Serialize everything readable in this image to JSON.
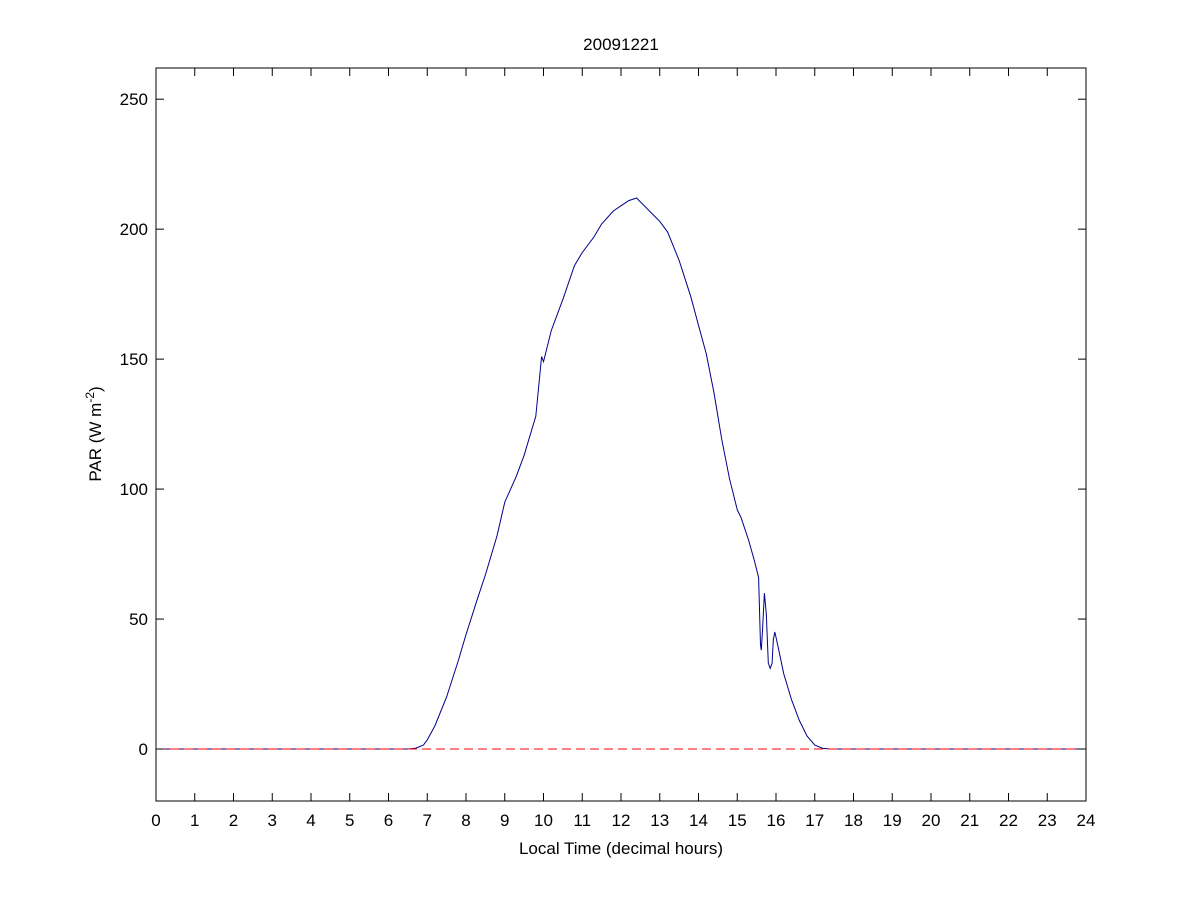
{
  "chart_data": {
    "type": "line",
    "title": "20091221",
    "xlabel": "Local Time (decimal hours)",
    "ylabel": "PAR (W m",
    "ylabel_superscript": "-2",
    "ylabel_suffix": ")",
    "xlim": [
      0,
      24
    ],
    "ylim": [
      -20,
      262
    ],
    "xticks": [
      0,
      1,
      2,
      3,
      4,
      5,
      6,
      7,
      8,
      9,
      10,
      11,
      12,
      13,
      14,
      15,
      16,
      17,
      18,
      19,
      20,
      21,
      22,
      23,
      24
    ],
    "yticks": [
      0,
      50,
      100,
      150,
      200,
      250
    ],
    "grid": false,
    "colors": {
      "series": "#00008b",
      "reference": "#ff0000",
      "axes": "#000000"
    },
    "series": [
      {
        "style": "solid",
        "x": [
          0,
          6.0,
          6.5,
          6.7,
          6.9,
          7.0,
          7.2,
          7.5,
          7.8,
          8.0,
          8.3,
          8.5,
          8.8,
          9.0,
          9.3,
          9.5,
          9.8,
          9.95,
          10.0,
          10.2,
          10.5,
          10.8,
          11.0,
          11.3,
          11.5,
          11.8,
          12.0,
          12.2,
          12.4,
          12.6,
          12.8,
          13.0,
          13.2,
          13.5,
          13.8,
          14.0,
          14.2,
          14.4,
          14.6,
          14.8,
          15.0,
          15.1,
          15.3,
          15.45,
          15.55,
          15.6,
          15.62,
          15.65,
          15.7,
          15.75,
          15.8,
          15.85,
          15.9,
          15.93,
          15.97,
          16.0,
          16.1,
          16.2,
          16.4,
          16.6,
          16.8,
          17.0,
          17.2,
          17.4,
          18.0,
          24
        ],
        "y": [
          0,
          0,
          0,
          0.3,
          1.5,
          3.5,
          9,
          20,
          34,
          44,
          58,
          67,
          82,
          95,
          105,
          113,
          128,
          151,
          149,
          161,
          173,
          186,
          191,
          197,
          202,
          207,
          209,
          211,
          212,
          209,
          206,
          203,
          199,
          188,
          174,
          163,
          152,
          137,
          119,
          104,
          92,
          89,
          80,
          72,
          66,
          40,
          38,
          45,
          60,
          52,
          33,
          31,
          33,
          42,
          45,
          43,
          36,
          29,
          19,
          11,
          5,
          1.5,
          0.3,
          0,
          0,
          0
        ]
      },
      {
        "style": "dashed",
        "x": [
          0,
          24
        ],
        "y": [
          0,
          0
        ]
      }
    ]
  }
}
